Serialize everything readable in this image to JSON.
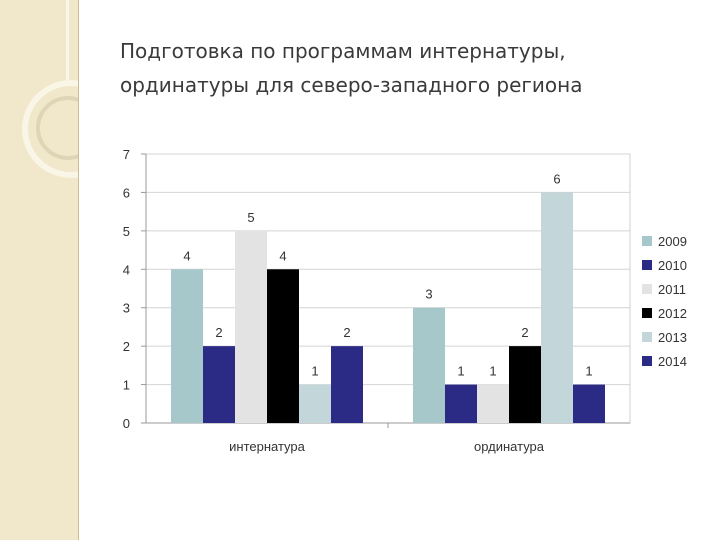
{
  "slide": {
    "title_line1": "Подготовка по программам интернатуры,",
    "title_line2": "ординатуры для северо-западного региона"
  },
  "chart_data": {
    "type": "bar",
    "title": "",
    "xlabel": "",
    "ylabel": "",
    "ylim": [
      0,
      7
    ],
    "yticks": [
      0,
      1,
      2,
      3,
      4,
      5,
      6,
      7
    ],
    "grid": true,
    "legend_position": "right",
    "categories": [
      "интернатура",
      "ординатура"
    ],
    "series": [
      {
        "name": "2009",
        "color": "#a7c8cb",
        "values": [
          4,
          3
        ]
      },
      {
        "name": "2010",
        "color": "#2b2b85",
        "values": [
          2,
          1
        ]
      },
      {
        "name": "2011",
        "color": "#e3e3e3",
        "values": [
          5,
          1
        ]
      },
      {
        "name": "2012",
        "color": "#000000",
        "values": [
          4,
          2
        ]
      },
      {
        "name": "2013",
        "color": "#c3d6da",
        "values": [
          1,
          6
        ]
      },
      {
        "name": "2014",
        "color": "#2b2b85",
        "values": [
          2,
          1
        ]
      }
    ]
  }
}
